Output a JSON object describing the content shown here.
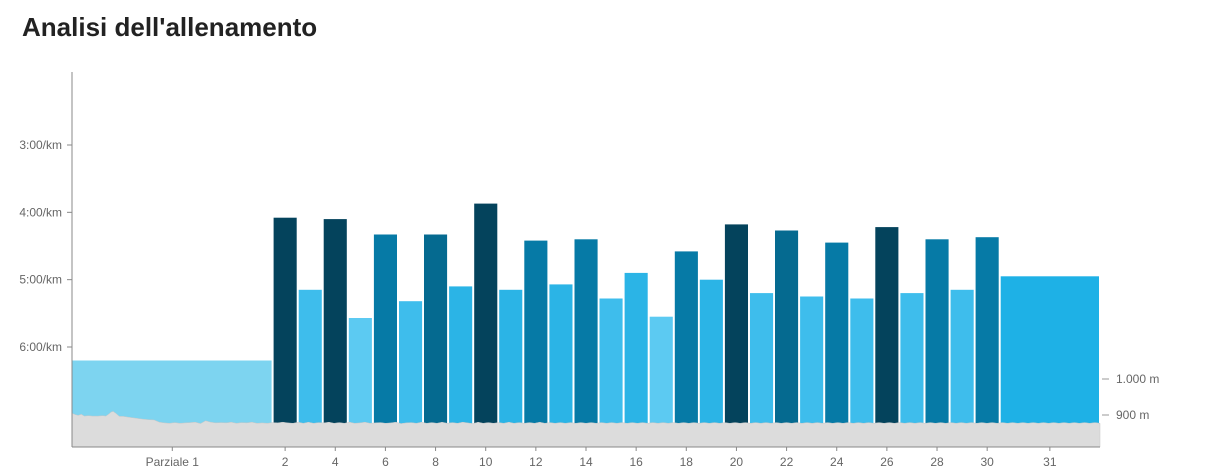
{
  "page": {
    "title": "Analisi dell'allenamento"
  },
  "chart_data": {
    "type": "bar",
    "title": "Analisi dell'allenamento",
    "y_axis": {
      "unit": "pace (min/km)",
      "ticks": [
        {
          "value": 3,
          "label": "3:00/km"
        },
        {
          "value": 4,
          "label": "4:00/km"
        },
        {
          "value": 5,
          "label": "5:00/km"
        },
        {
          "value": 6,
          "label": "6:00/km"
        }
      ],
      "range": [
        1.95,
        7.5
      ]
    },
    "elevation_axis": {
      "ticks": [
        {
          "value": 1000,
          "label": "1.000 m"
        },
        {
          "value": 900,
          "label": "900 m"
        }
      ]
    },
    "x_axis": {
      "labels": [
        "Parziale 1",
        "2",
        "4",
        "6",
        "8",
        "10",
        "12",
        "14",
        "16",
        "18",
        "20",
        "22",
        "24",
        "26",
        "28",
        "30",
        "31"
      ]
    },
    "splits": [
      {
        "split": 1,
        "pace": 6.2,
        "width": 4.0,
        "color": "#7dd4f0"
      },
      {
        "split": 2,
        "pace": 4.08,
        "width": 0.5,
        "color": "#04435c"
      },
      {
        "split": 3,
        "pace": 5.15,
        "width": 0.5,
        "color": "#3ebdec"
      },
      {
        "split": 4,
        "pace": 4.1,
        "width": 0.5,
        "color": "#04435c"
      },
      {
        "split": 5,
        "pace": 5.57,
        "width": 0.5,
        "color": "#5ccaf2"
      },
      {
        "split": 6,
        "pace": 4.33,
        "width": 0.5,
        "color": "#067aa6"
      },
      {
        "split": 7,
        "pace": 5.32,
        "width": 0.5,
        "color": "#3ebdec"
      },
      {
        "split": 8,
        "pace": 4.33,
        "width": 0.5,
        "color": "#056a90"
      },
      {
        "split": 9,
        "pace": 5.1,
        "width": 0.5,
        "color": "#2bb4e6"
      },
      {
        "split": 10,
        "pace": 3.87,
        "width": 0.5,
        "color": "#04435c"
      },
      {
        "split": 11,
        "pace": 5.15,
        "width": 0.5,
        "color": "#2bb4e6"
      },
      {
        "split": 12,
        "pace": 4.42,
        "width": 0.5,
        "color": "#067aa6"
      },
      {
        "split": 13,
        "pace": 5.07,
        "width": 0.5,
        "color": "#2bb4e6"
      },
      {
        "split": 14,
        "pace": 4.4,
        "width": 0.5,
        "color": "#067aa6"
      },
      {
        "split": 15,
        "pace": 5.28,
        "width": 0.5,
        "color": "#3ebdec"
      },
      {
        "split": 16,
        "pace": 4.9,
        "width": 0.5,
        "color": "#2bb4e6"
      },
      {
        "split": 17,
        "pace": 5.55,
        "width": 0.5,
        "color": "#5ccaf2"
      },
      {
        "split": 18,
        "pace": 4.58,
        "width": 0.5,
        "color": "#067aa6"
      },
      {
        "split": 19,
        "pace": 5.0,
        "width": 0.5,
        "color": "#2bb4e6"
      },
      {
        "split": 20,
        "pace": 4.18,
        "width": 0.5,
        "color": "#04435c"
      },
      {
        "split": 21,
        "pace": 5.2,
        "width": 0.5,
        "color": "#3ebdec"
      },
      {
        "split": 22,
        "pace": 4.27,
        "width": 0.5,
        "color": "#056a90"
      },
      {
        "split": 23,
        "pace": 5.25,
        "width": 0.5,
        "color": "#3ebdec"
      },
      {
        "split": 24,
        "pace": 4.45,
        "width": 0.5,
        "color": "#067aa6"
      },
      {
        "split": 25,
        "pace": 5.28,
        "width": 0.5,
        "color": "#3ebdec"
      },
      {
        "split": 26,
        "pace": 4.22,
        "width": 0.5,
        "color": "#04435c"
      },
      {
        "split": 27,
        "pace": 5.2,
        "width": 0.5,
        "color": "#3ebdec"
      },
      {
        "split": 28,
        "pace": 4.4,
        "width": 0.5,
        "color": "#067aa6"
      },
      {
        "split": 29,
        "pace": 5.15,
        "width": 0.5,
        "color": "#3ebdec"
      },
      {
        "split": 30,
        "pace": 4.37,
        "width": 0.5,
        "color": "#067aa6"
      },
      {
        "split": 31,
        "pace": 4.95,
        "width": 2.0,
        "color": "#1eb1e6"
      }
    ],
    "elevation_profile": [
      [
        0,
        905
      ],
      [
        0.3,
        901
      ],
      [
        0.6,
        899
      ],
      [
        0.9,
        902
      ],
      [
        1.2,
        897
      ],
      [
        1.6,
        898
      ],
      [
        2.0,
        897
      ],
      [
        2.5,
        897
      ],
      [
        3.0,
        898
      ],
      [
        3.3,
        897
      ],
      [
        3.6,
        903
      ],
      [
        3.8,
        908
      ],
      [
        4.0,
        910
      ],
      [
        4.3,
        904
      ],
      [
        4.6,
        896
      ],
      [
        5.0,
        896
      ],
      [
        5.5,
        894
      ],
      [
        6.0,
        892
      ],
      [
        6.5,
        890
      ],
      [
        7.0,
        888
      ],
      [
        7.5,
        887
      ],
      [
        8.0,
        886
      ],
      [
        8.5,
        880
      ],
      [
        9.0,
        878
      ],
      [
        9.5,
        877
      ],
      [
        10.0,
        879
      ],
      [
        10.5,
        877
      ],
      [
        11.0,
        878
      ],
      [
        11.5,
        879
      ],
      [
        12.0,
        880
      ],
      [
        12.5,
        876
      ],
      [
        13.0,
        884
      ],
      [
        13.5,
        880
      ],
      [
        14.0,
        878
      ],
      [
        14.5,
        879
      ],
      [
        15.0,
        878
      ],
      [
        15.5,
        880
      ],
      [
        16.0,
        877
      ],
      [
        16.5,
        879
      ],
      [
        17.0,
        878
      ],
      [
        17.5,
        880
      ],
      [
        18.0,
        877
      ],
      [
        18.5,
        878
      ],
      [
        19.0,
        877
      ],
      [
        19.5,
        879
      ],
      [
        20.0,
        878
      ],
      [
        20.5,
        880
      ],
      [
        21.0,
        878
      ],
      [
        21.5,
        877
      ],
      [
        22.0,
        880
      ],
      [
        22.5,
        877
      ],
      [
        23.0,
        880
      ],
      [
        23.5,
        877
      ],
      [
        24.0,
        879
      ],
      [
        24.5,
        878
      ],
      [
        25.0,
        880
      ],
      [
        25.5,
        877
      ],
      [
        26.0,
        879
      ],
      [
        26.5,
        877
      ],
      [
        27.0,
        880
      ],
      [
        27.5,
        877
      ],
      [
        28.0,
        878
      ],
      [
        28.5,
        880
      ],
      [
        29.0,
        877
      ],
      [
        29.5,
        878
      ],
      [
        30.0,
        879
      ],
      [
        30.5,
        877
      ],
      [
        31.0,
        878
      ],
      [
        31.5,
        880
      ],
      [
        32.0,
        876
      ],
      [
        32.5,
        878
      ],
      [
        33.0,
        879
      ],
      [
        33.5,
        877
      ],
      [
        34.0,
        880
      ],
      [
        34.5,
        877
      ],
      [
        35.0,
        879
      ],
      [
        35.5,
        877
      ],
      [
        36.0,
        880
      ],
      [
        36.5,
        877
      ],
      [
        37.0,
        879
      ],
      [
        37.5,
        877
      ],
      [
        38.0,
        880
      ],
      [
        38.5,
        878
      ],
      [
        39.0,
        876
      ],
      [
        39.5,
        880
      ],
      [
        40.0,
        877
      ],
      [
        40.5,
        879
      ],
      [
        41.0,
        877
      ],
      [
        41.5,
        879
      ],
      [
        42.0,
        877
      ],
      [
        42.5,
        880
      ],
      [
        43.0,
        877
      ],
      [
        43.5,
        879
      ],
      [
        44.0,
        877
      ],
      [
        44.5,
        879
      ],
      [
        45.0,
        877
      ],
      [
        45.5,
        880
      ],
      [
        46.0,
        877
      ],
      [
        46.5,
        879
      ],
      [
        47.0,
        877
      ],
      [
        47.5,
        879
      ],
      [
        48.0,
        877
      ],
      [
        48.5,
        879
      ],
      [
        49.0,
        877
      ],
      [
        49.5,
        879
      ],
      [
        50.0,
        877
      ],
      [
        50.5,
        879
      ],
      [
        51.0,
        877
      ],
      [
        51.5,
        879
      ],
      [
        52.0,
        877
      ],
      [
        52.5,
        879
      ],
      [
        53.0,
        877
      ],
      [
        53.5,
        879
      ],
      [
        54.0,
        877
      ],
      [
        54.5,
        879
      ],
      [
        55.0,
        877
      ],
      [
        55.5,
        879
      ],
      [
        56.0,
        877
      ],
      [
        56.5,
        879
      ],
      [
        57.0,
        877
      ],
      [
        57.5,
        879
      ],
      [
        58.0,
        877
      ],
      [
        58.5,
        879
      ],
      [
        59.0,
        877
      ],
      [
        59.5,
        879
      ],
      [
        60.0,
        877
      ],
      [
        60.5,
        879
      ],
      [
        61.0,
        877
      ],
      [
        61.5,
        879
      ],
      [
        62.0,
        877
      ],
      [
        62.5,
        879
      ],
      [
        63.0,
        877
      ],
      [
        63.5,
        879
      ],
      [
        64.0,
        877
      ],
      [
        64.5,
        879
      ],
      [
        65.0,
        877
      ],
      [
        65.5,
        879
      ],
      [
        66.0,
        877
      ],
      [
        66.5,
        879
      ],
      [
        67.0,
        877
      ],
      [
        67.5,
        879
      ],
      [
        68.0,
        877
      ],
      [
        68.5,
        879
      ],
      [
        69.0,
        877
      ],
      [
        69.5,
        879
      ],
      [
        70.0,
        877
      ],
      [
        70.5,
        879
      ],
      [
        71.0,
        877
      ],
      [
        71.5,
        879
      ],
      [
        72.0,
        877
      ],
      [
        72.5,
        879
      ],
      [
        73.0,
        877
      ],
      [
        73.5,
        879
      ],
      [
        74.0,
        877
      ],
      [
        74.5,
        879
      ],
      [
        75.0,
        877
      ],
      [
        75.5,
        879
      ],
      [
        76.0,
        877
      ],
      [
        76.5,
        879
      ],
      [
        77.0,
        877
      ],
      [
        77.5,
        879
      ],
      [
        78.0,
        877
      ],
      [
        78.5,
        879
      ],
      [
        79.0,
        877
      ],
      [
        79.5,
        879
      ],
      [
        80.0,
        877
      ],
      [
        80.5,
        879
      ],
      [
        81.0,
        877
      ],
      [
        81.5,
        879
      ],
      [
        82.0,
        877
      ],
      [
        82.5,
        879
      ],
      [
        83.0,
        877
      ],
      [
        83.5,
        879
      ],
      [
        84.0,
        877
      ],
      [
        84.5,
        879
      ],
      [
        85.0,
        877
      ],
      [
        85.5,
        879
      ],
      [
        86.0,
        877
      ],
      [
        86.5,
        879
      ],
      [
        87.0,
        877
      ],
      [
        87.5,
        879
      ],
      [
        88.0,
        877
      ],
      [
        88.5,
        879
      ],
      [
        89.0,
        877
      ],
      [
        89.5,
        879
      ],
      [
        90.0,
        877
      ],
      [
        90.5,
        879
      ],
      [
        91.0,
        877
      ],
      [
        91.5,
        879
      ],
      [
        92.0,
        877
      ],
      [
        92.5,
        879
      ],
      [
        93.0,
        877
      ],
      [
        93.5,
        879
      ],
      [
        94.0,
        877
      ],
      [
        94.5,
        879
      ],
      [
        95.0,
        877
      ],
      [
        95.5,
        879
      ],
      [
        96.0,
        877
      ],
      [
        96.5,
        879
      ],
      [
        97.0,
        877
      ],
      [
        97.5,
        879
      ],
      [
        98.0,
        877
      ],
      [
        98.5,
        879
      ],
      [
        99.0,
        877
      ],
      [
        99.5,
        879
      ],
      [
        100.0,
        877
      ]
    ],
    "grid": false,
    "legend": "none"
  }
}
